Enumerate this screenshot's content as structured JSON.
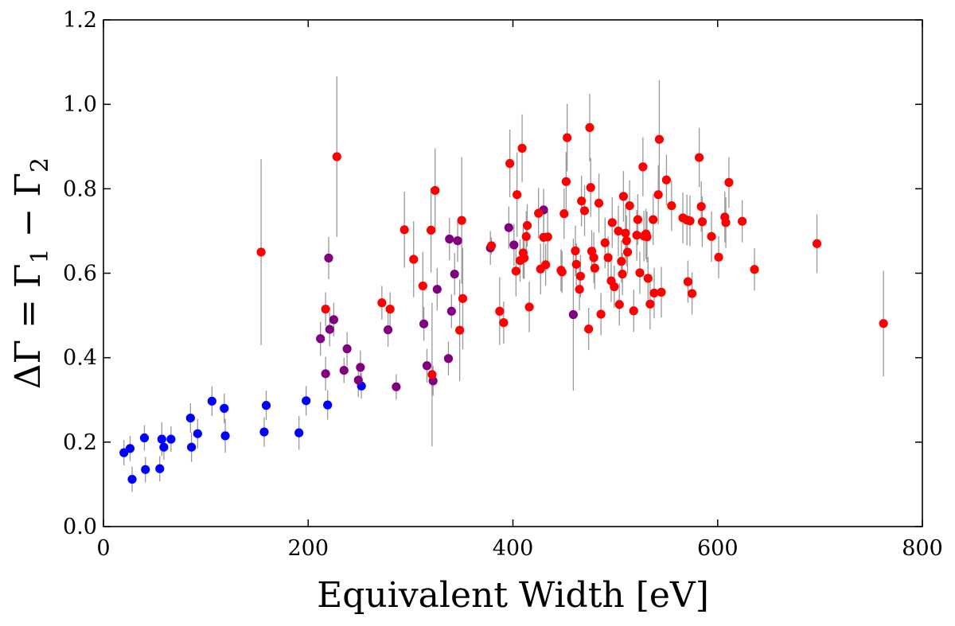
{
  "chart_data": {
    "type": "scatter",
    "title": "",
    "xlabel": "Equivalent Width [eV]",
    "ylabel": "ΔΓ = Γ1 − Γ2",
    "ylabel_parts": {
      "lhs": "ΔΓ = Γ",
      "sub1": "1",
      "mid": " − Γ",
      "sub2": "2"
    },
    "xlim": [
      0,
      800
    ],
    "ylim": [
      0,
      1.2
    ],
    "xticks": [
      0,
      200,
      400,
      600,
      800
    ],
    "xtick_labels": [
      "0",
      "200",
      "400",
      "600",
      "800"
    ],
    "yticks": [
      0,
      0.2,
      0.4,
      0.6,
      0.8,
      1.0,
      1.2
    ],
    "ytick_labels": [
      "0.0",
      "0.2",
      "0.4",
      "0.6",
      "0.8",
      "1.0",
      "1.2"
    ],
    "grid": false,
    "errorbar_color": "#999999",
    "series": [
      {
        "name": "blue",
        "color": "#0000ff",
        "points": [
          [
            20,
            0.175,
            0.03
          ],
          [
            26,
            0.185,
            0.03
          ],
          [
            28,
            0.112,
            0.03
          ],
          [
            40,
            0.21,
            0.03
          ],
          [
            41,
            0.135,
            0.03
          ],
          [
            55,
            0.137,
            0.03
          ],
          [
            57,
            0.207,
            0.04
          ],
          [
            59,
            0.188,
            0.03
          ],
          [
            66,
            0.207,
            0.03
          ],
          [
            85,
            0.257,
            0.035
          ],
          [
            86,
            0.188,
            0.035
          ],
          [
            92,
            0.22,
            0.035
          ],
          [
            106,
            0.297,
            0.035
          ],
          [
            118,
            0.28,
            0.035
          ],
          [
            119,
            0.215,
            0.04
          ],
          [
            157,
            0.224,
            0.035
          ],
          [
            159,
            0.287,
            0.035
          ],
          [
            191,
            0.222,
            0.04
          ],
          [
            198,
            0.298,
            0.035
          ],
          [
            219,
            0.288,
            0.035
          ],
          [
            252,
            0.333,
            0.03
          ]
        ]
      },
      {
        "name": "purple",
        "color": "#800080",
        "points": [
          [
            212,
            0.445,
            0.04
          ],
          [
            217,
            0.362,
            0.04
          ],
          [
            220,
            0.636,
            0.05
          ],
          [
            221,
            0.467,
            0.04
          ],
          [
            225,
            0.49,
            0.04
          ],
          [
            235,
            0.37,
            0.03
          ],
          [
            238,
            0.421,
            0.04
          ],
          [
            249,
            0.347,
            0.04
          ],
          [
            251,
            0.377,
            0.04
          ],
          [
            278,
            0.466,
            0.04
          ],
          [
            286,
            0.331,
            0.03
          ],
          [
            313,
            0.48,
            0.04
          ],
          [
            316,
            0.381,
            0.04
          ],
          [
            322,
            0.345,
            0.035
          ],
          [
            326,
            0.562,
            0.05
          ],
          [
            337,
            0.398,
            0.04
          ],
          [
            338,
            0.681,
            0.05
          ],
          [
            340,
            0.51,
            0.04
          ],
          [
            343,
            0.598,
            0.05
          ],
          [
            346,
            0.677,
            0.05
          ],
          [
            378,
            0.66,
            0.04
          ],
          [
            396,
            0.708,
            0.05
          ],
          [
            401,
            0.667,
            0.05
          ],
          [
            430,
            0.75,
            0.05
          ],
          [
            459,
            0.502,
            0.18
          ]
        ]
      },
      {
        "name": "red",
        "color": "#ff0000",
        "points": [
          [
            154,
            0.65,
            0.22
          ],
          [
            217,
            0.515,
            0.04
          ],
          [
            228,
            0.876,
            0.19
          ],
          [
            272,
            0.53,
            0.04
          ],
          [
            280,
            0.515,
            0.04
          ],
          [
            294,
            0.703,
            0.09
          ],
          [
            303,
            0.633,
            0.09
          ],
          [
            312,
            0.57,
            0.08
          ],
          [
            320,
            0.702,
            0.1
          ],
          [
            321,
            0.36,
            0.17
          ],
          [
            324,
            0.796,
            0.1
          ],
          [
            348,
            0.465,
            0.12
          ],
          [
            350,
            0.725,
            0.15
          ],
          [
            351,
            0.54,
            0.12
          ],
          [
            379,
            0.665,
            0.02
          ],
          [
            387,
            0.51,
            0.08
          ],
          [
            391,
            0.483,
            0.05
          ],
          [
            397,
            0.86,
            0.08
          ],
          [
            403,
            0.605,
            0.06
          ],
          [
            404,
            0.786,
            0.1
          ],
          [
            407,
            0.63,
            0.05
          ],
          [
            409,
            0.896,
            0.08
          ],
          [
            410,
            0.648,
            0.06
          ],
          [
            411,
            0.636,
            0.05
          ],
          [
            413,
            0.687,
            0.06
          ],
          [
            414,
            0.713,
            0.05
          ],
          [
            416,
            0.52,
            0.06
          ],
          [
            425,
            0.742,
            0.06
          ],
          [
            427,
            0.61,
            0.06
          ],
          [
            430,
            0.685,
            0.06
          ],
          [
            432,
            0.62,
            0.05
          ],
          [
            434,
            0.686,
            0.06
          ],
          [
            447,
            0.607,
            0.05
          ],
          [
            448,
            0.603,
            0.05
          ],
          [
            450,
            0.741,
            0.06
          ],
          [
            452,
            0.817,
            0.07
          ],
          [
            453,
            0.921,
            0.08
          ],
          [
            461,
            0.653,
            0.06
          ],
          [
            462,
            0.621,
            0.05
          ],
          [
            465,
            0.562,
            0.05
          ],
          [
            466,
            0.593,
            0.05
          ],
          [
            467,
            0.771,
            0.06
          ],
          [
            470,
            0.748,
            0.06
          ],
          [
            474,
            0.468,
            0.05
          ],
          [
            475,
            0.945,
            0.08
          ],
          [
            476,
            0.803,
            0.07
          ],
          [
            477,
            0.652,
            0.05
          ],
          [
            479,
            0.637,
            0.06
          ],
          [
            480,
            0.612,
            0.05
          ],
          [
            484,
            0.766,
            0.07
          ],
          [
            486,
            0.503,
            0.05
          ],
          [
            490,
            0.672,
            0.06
          ],
          [
            493,
            0.637,
            0.05
          ],
          [
            496,
            0.582,
            0.05
          ],
          [
            497,
            0.72,
            0.06
          ],
          [
            499,
            0.568,
            0.05
          ],
          [
            503,
            0.7,
            0.06
          ],
          [
            504,
            0.526,
            0.05
          ],
          [
            506,
            0.628,
            0.05
          ],
          [
            507,
            0.598,
            0.05
          ],
          [
            508,
            0.782,
            0.06
          ],
          [
            510,
            0.695,
            0.06
          ],
          [
            511,
            0.677,
            0.06
          ],
          [
            512,
            0.65,
            0.05
          ],
          [
            514,
            0.76,
            0.06
          ],
          [
            518,
            0.511,
            0.05
          ],
          [
            521,
            0.69,
            0.06
          ],
          [
            522,
            0.727,
            0.06
          ],
          [
            524,
            0.601,
            0.05
          ],
          [
            527,
            0.852,
            0.07
          ],
          [
            528,
            0.688,
            0.06
          ],
          [
            530,
            0.693,
            0.06
          ],
          [
            531,
            0.686,
            0.06
          ],
          [
            532,
            0.588,
            0.05
          ],
          [
            534,
            0.527,
            0.06
          ],
          [
            537,
            0.727,
            0.06
          ],
          [
            538,
            0.553,
            0.06
          ],
          [
            542,
            0.786,
            0.07
          ],
          [
            543,
            0.917,
            0.14
          ],
          [
            545,
            0.555,
            0.06
          ],
          [
            550,
            0.821,
            0.06
          ],
          [
            555,
            0.76,
            0.06
          ],
          [
            566,
            0.731,
            0.06
          ],
          [
            570,
            0.726,
            0.06
          ],
          [
            571,
            0.58,
            0.05
          ],
          [
            573,
            0.724,
            0.06
          ],
          [
            575,
            0.552,
            0.05
          ],
          [
            582,
            0.874,
            0.07
          ],
          [
            584,
            0.758,
            0.06
          ],
          [
            585,
            0.722,
            0.06
          ],
          [
            594,
            0.687,
            0.06
          ],
          [
            601,
            0.638,
            0.05
          ],
          [
            607,
            0.733,
            0.06
          ],
          [
            608,
            0.72,
            0.06
          ],
          [
            611,
            0.815,
            0.06
          ],
          [
            624,
            0.723,
            0.05
          ],
          [
            636,
            0.609,
            0.05
          ],
          [
            697,
            0.67,
            0.07
          ],
          [
            762,
            0.481,
            0.125
          ]
        ]
      }
    ]
  }
}
